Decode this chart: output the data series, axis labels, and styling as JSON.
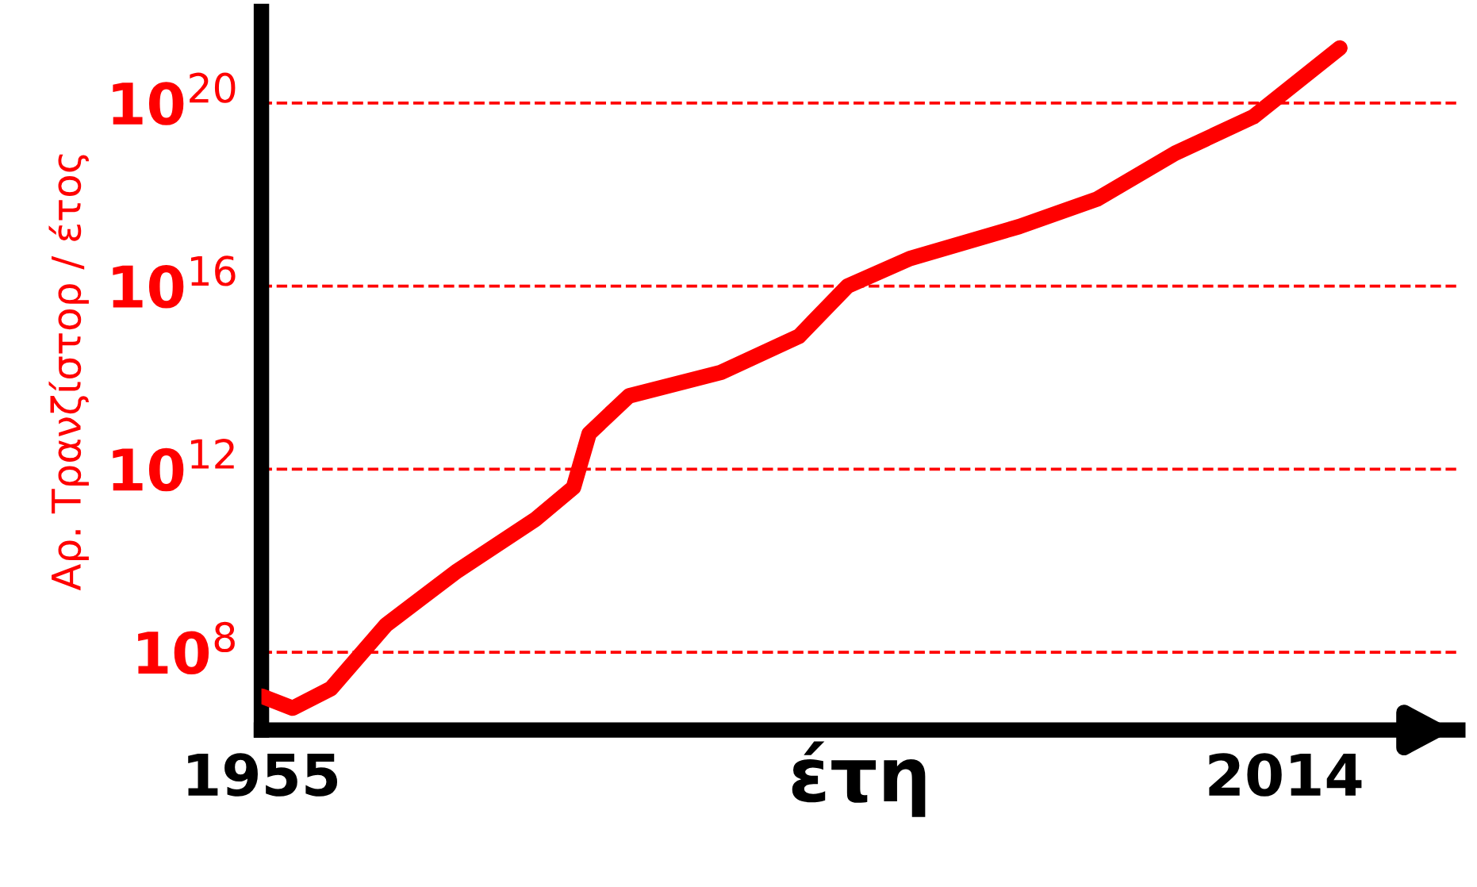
{
  "chart_data": {
    "type": "line",
    "xlabel": "έτη",
    "ylabel": "Αρ. Τρανζίστορ / έτος",
    "log": "y",
    "x": [
      1955,
      1956.8,
      1959,
      1962.2,
      1966.3,
      1970.8,
      1973,
      1973.9,
      1976.2,
      1981.5,
      1986,
      1988.8,
      1992.4,
      1998.7,
      2003.2,
      2007.7,
      2012.2,
      2017.2
    ],
    "series": [
      {
        "color": "#ff0000",
        "values": [
          11000000.0,
          6000000.0,
          16000000.0,
          400000000.0,
          6000000000.0,
          80000000000.0,
          400000000000.0,
          6000000000000.0,
          40000000000000.0,
          130000000000000.0,
          800000000000000.0,
          1e+16,
          4e+16,
          2e+17,
          8e+17,
          8e+18,
          5e+19,
          1.6e+21
        ]
      }
    ],
    "xlim": [
      1955,
      2024
    ],
    "xticks": [
      1955,
      2014
    ],
    "ylim": [
      2000000.0,
      1e+22
    ],
    "yticks": [
      {
        "value": 100000000.0,
        "label": "10$^{8}$"
      },
      {
        "value": 1000000000000.0,
        "label": "10$^{12}$"
      },
      {
        "value": 1e+16,
        "label": "10$^{16}$"
      },
      {
        "value": 1e+20,
        "label": "10$^{20}$"
      }
    ],
    "grid": "y",
    "line_style": "solid",
    "marker": "none"
  }
}
